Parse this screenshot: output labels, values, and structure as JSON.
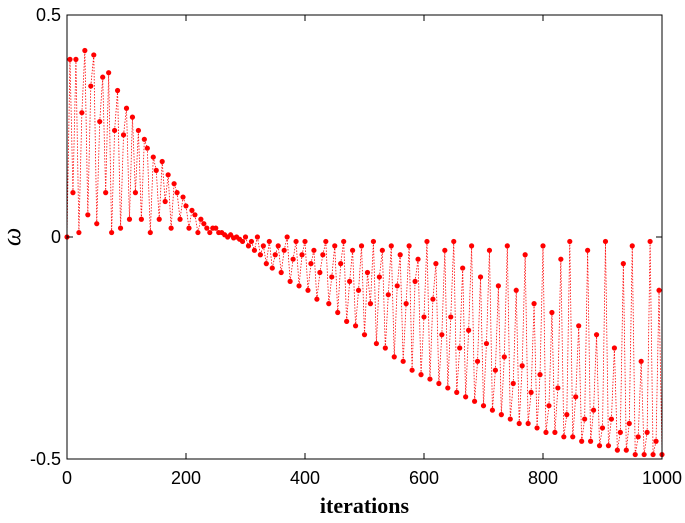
{
  "chart_data": {
    "type": "scatter",
    "title": "",
    "xlabel": "iterations",
    "ylabel": "ω",
    "xlim": [
      0,
      1000
    ],
    "ylim": [
      -0.5,
      0.5
    ],
    "xticks": [
      0,
      200,
      400,
      600,
      800,
      1000
    ],
    "xtick_labels": [
      "0",
      "200",
      "400",
      "600",
      "800",
      "1000"
    ],
    "yticks": [
      -0.5,
      0,
      0.5
    ],
    "ytick_labels": [
      "-0.5",
      "0",
      "0.5"
    ],
    "grid": false,
    "series": [
      {
        "color": "#ff0000",
        "marker": "dot",
        "line_style": "dotted-stems",
        "points": [
          [
            0,
            0.0
          ],
          [
            5,
            0.4
          ],
          [
            10,
            0.1
          ],
          [
            15,
            0.4
          ],
          [
            20,
            0.01
          ],
          [
            25,
            0.28
          ],
          [
            30,
            0.42
          ],
          [
            35,
            0.05
          ],
          [
            40,
            0.34
          ],
          [
            45,
            0.41
          ],
          [
            50,
            0.03
          ],
          [
            55,
            0.26
          ],
          [
            60,
            0.36
          ],
          [
            65,
            0.1
          ],
          [
            70,
            0.37
          ],
          [
            75,
            0.01
          ],
          [
            80,
            0.24
          ],
          [
            85,
            0.33
          ],
          [
            90,
            0.02
          ],
          [
            95,
            0.23
          ],
          [
            100,
            0.29
          ],
          [
            105,
            0.04
          ],
          [
            110,
            0.27
          ],
          [
            115,
            0.1
          ],
          [
            120,
            0.24
          ],
          [
            125,
            0.04
          ],
          [
            130,
            0.22
          ],
          [
            135,
            0.2
          ],
          [
            140,
            0.01
          ],
          [
            145,
            0.18
          ],
          [
            150,
            0.15
          ],
          [
            155,
            0.04
          ],
          [
            160,
            0.17
          ],
          [
            165,
            0.08
          ],
          [
            170,
            0.14
          ],
          [
            175,
            0.02
          ],
          [
            180,
            0.12
          ],
          [
            185,
            0.1
          ],
          [
            190,
            0.04
          ],
          [
            195,
            0.09
          ],
          [
            200,
            0.07
          ],
          [
            205,
            0.02
          ],
          [
            210,
            0.06
          ],
          [
            215,
            0.05
          ],
          [
            220,
            0.01
          ],
          [
            225,
            0.04
          ],
          [
            230,
            0.03
          ],
          [
            235,
            0.02
          ],
          [
            240,
            0.01
          ],
          [
            245,
            0.02
          ],
          [
            250,
            0.02
          ],
          [
            255,
            0.01
          ],
          [
            260,
            0.01
          ],
          [
            265,
            0.005
          ],
          [
            270,
            0.0
          ],
          [
            275,
            0.005
          ],
          [
            280,
            -0.002
          ],
          [
            285,
            0.0
          ],
          [
            290,
            -0.005
          ],
          [
            295,
            -0.01
          ],
          [
            300,
            0.0
          ],
          [
            305,
            -0.02
          ],
          [
            310,
            -0.01
          ],
          [
            315,
            -0.03
          ],
          [
            320,
            0.0
          ],
          [
            325,
            -0.04
          ],
          [
            330,
            -0.02
          ],
          [
            335,
            -0.06
          ],
          [
            340,
            -0.01
          ],
          [
            345,
            -0.07
          ],
          [
            350,
            -0.04
          ],
          [
            355,
            -0.02
          ],
          [
            360,
            -0.08
          ],
          [
            365,
            -0.03
          ],
          [
            370,
            0.0
          ],
          [
            375,
            -0.1
          ],
          [
            380,
            -0.05
          ],
          [
            385,
            -0.01
          ],
          [
            390,
            -0.11
          ],
          [
            395,
            -0.04
          ],
          [
            400,
            -0.01
          ],
          [
            405,
            -0.12
          ],
          [
            410,
            -0.06
          ],
          [
            415,
            -0.03
          ],
          [
            420,
            -0.14
          ],
          [
            425,
            -0.08
          ],
          [
            430,
            -0.04
          ],
          [
            435,
            -0.01
          ],
          [
            440,
            -0.15
          ],
          [
            445,
            -0.09
          ],
          [
            450,
            -0.02
          ],
          [
            455,
            -0.17
          ],
          [
            460,
            -0.06
          ],
          [
            465,
            -0.01
          ],
          [
            470,
            -0.19
          ],
          [
            475,
            -0.1
          ],
          [
            480,
            -0.03
          ],
          [
            485,
            -0.2
          ],
          [
            490,
            -0.12
          ],
          [
            495,
            -0.02
          ],
          [
            500,
            -0.22
          ],
          [
            505,
            -0.08
          ],
          [
            510,
            -0.15
          ],
          [
            515,
            -0.01
          ],
          [
            520,
            -0.24
          ],
          [
            525,
            -0.09
          ],
          [
            530,
            -0.03
          ],
          [
            535,
            -0.25
          ],
          [
            540,
            -0.13
          ],
          [
            545,
            -0.02
          ],
          [
            550,
            -0.27
          ],
          [
            555,
            -0.11
          ],
          [
            560,
            -0.04
          ],
          [
            565,
            -0.28
          ],
          [
            570,
            -0.15
          ],
          [
            575,
            -0.02
          ],
          [
            580,
            -0.3
          ],
          [
            585,
            -0.1
          ],
          [
            590,
            -0.05
          ],
          [
            595,
            -0.31
          ],
          [
            600,
            -0.18
          ],
          [
            605,
            -0.01
          ],
          [
            610,
            -0.32
          ],
          [
            615,
            -0.14
          ],
          [
            620,
            -0.06
          ],
          [
            625,
            -0.33
          ],
          [
            630,
            -0.22
          ],
          [
            635,
            -0.03
          ],
          [
            640,
            -0.34
          ],
          [
            645,
            -0.18
          ],
          [
            650,
            -0.01
          ],
          [
            655,
            -0.35
          ],
          [
            660,
            -0.25
          ],
          [
            665,
            -0.07
          ],
          [
            670,
            -0.36
          ],
          [
            675,
            -0.21
          ],
          [
            680,
            -0.02
          ],
          [
            685,
            -0.37
          ],
          [
            690,
            -0.28
          ],
          [
            695,
            -0.09
          ],
          [
            700,
            -0.38
          ],
          [
            705,
            -0.24
          ],
          [
            710,
            -0.03
          ],
          [
            715,
            -0.39
          ],
          [
            720,
            -0.3
          ],
          [
            725,
            -0.11
          ],
          [
            730,
            -0.4
          ],
          [
            735,
            -0.27
          ],
          [
            740,
            -0.02
          ],
          [
            745,
            -0.41
          ],
          [
            750,
            -0.33
          ],
          [
            755,
            -0.12
          ],
          [
            760,
            -0.42
          ],
          [
            765,
            -0.29
          ],
          [
            770,
            -0.04
          ],
          [
            775,
            -0.42
          ],
          [
            780,
            -0.35
          ],
          [
            785,
            -0.15
          ],
          [
            790,
            -0.43
          ],
          [
            795,
            -0.31
          ],
          [
            800,
            -0.02
          ],
          [
            805,
            -0.44
          ],
          [
            810,
            -0.38
          ],
          [
            815,
            -0.17
          ],
          [
            820,
            -0.44
          ],
          [
            825,
            -0.34
          ],
          [
            830,
            -0.05
          ],
          [
            835,
            -0.45
          ],
          [
            840,
            -0.4
          ],
          [
            845,
            -0.01
          ],
          [
            850,
            -0.45
          ],
          [
            855,
            -0.36
          ],
          [
            860,
            -0.2
          ],
          [
            865,
            -0.46
          ],
          [
            870,
            -0.41
          ],
          [
            875,
            -0.03
          ],
          [
            880,
            -0.46
          ],
          [
            885,
            -0.39
          ],
          [
            890,
            -0.22
          ],
          [
            895,
            -0.47
          ],
          [
            900,
            -0.43
          ],
          [
            905,
            -0.01
          ],
          [
            910,
            -0.47
          ],
          [
            915,
            -0.41
          ],
          [
            920,
            -0.25
          ],
          [
            925,
            -0.48
          ],
          [
            930,
            -0.44
          ],
          [
            935,
            -0.06
          ],
          [
            940,
            -0.48
          ],
          [
            945,
            -0.42
          ],
          [
            950,
            -0.02
          ],
          [
            955,
            -0.49
          ],
          [
            960,
            -0.45
          ],
          [
            965,
            -0.28
          ],
          [
            970,
            -0.49
          ],
          [
            975,
            -0.44
          ],
          [
            980,
            -0.01
          ],
          [
            985,
            -0.49
          ],
          [
            990,
            -0.46
          ],
          [
            995,
            -0.12
          ],
          [
            1000,
            -0.49
          ]
        ]
      }
    ]
  }
}
